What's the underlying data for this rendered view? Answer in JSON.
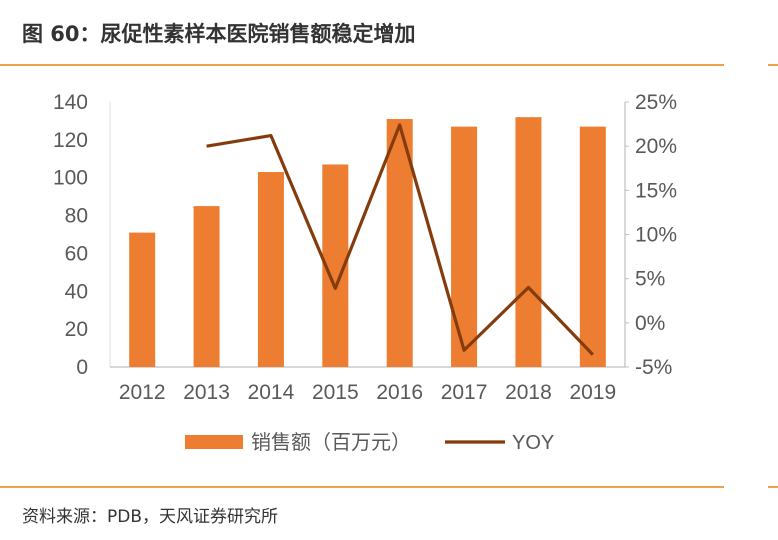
{
  "figure": {
    "title": "图 60：尿促性素样本医院销售额稳定增加",
    "source": "资料来源：PDB，天风证券研究所"
  },
  "chart_data": {
    "type": "bar",
    "categories": [
      "2012",
      "2013",
      "2014",
      "2015",
      "2016",
      "2017",
      "2018",
      "2019"
    ],
    "series": [
      {
        "name": "销售额（百万元）",
        "type": "bar",
        "axis": "left",
        "values": [
          71,
          85,
          103,
          107,
          131,
          127,
          132,
          127
        ]
      },
      {
        "name": "YOY",
        "type": "line",
        "axis": "right",
        "values": [
          null,
          20.0,
          21.2,
          3.9,
          22.4,
          -3.1,
          4.0,
          -3.6
        ]
      }
    ],
    "y_left": {
      "lim": [
        0,
        140
      ],
      "ticks": [
        "0",
        "20",
        "40",
        "60",
        "80",
        "100",
        "120",
        "140"
      ]
    },
    "y_right": {
      "lim": [
        -5,
        25
      ],
      "ticks": [
        "-5%",
        "0%",
        "5%",
        "10%",
        "15%",
        "20%",
        "25%"
      ]
    },
    "legend": "bottom",
    "grid": false,
    "colors": {
      "bar": "#ed7d31",
      "line": "#843c0c",
      "axis": "#bfbfbf"
    }
  }
}
